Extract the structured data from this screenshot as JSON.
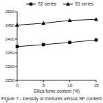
{
  "chart_data": {
    "type": "line",
    "title": "Figure 7 - Density of mixtures versus SF content",
    "x_label": "Silica fume content (%)",
    "x": [
      0,
      5,
      10,
      15
    ],
    "series": [
      {
        "name": "S2 series",
        "color": "#000000",
        "marker": "square",
        "values": [
          2373,
          2380,
          2388,
          2397
        ]
      },
      {
        "name": "S1 series",
        "color": "#000000",
        "marker": "triangle",
        "values": [
          2451,
          2458,
          2468,
          2472
        ]
      }
    ],
    "xlim": [
      0,
      15
    ],
    "xticks": [
      0,
      5,
      10,
      15
    ],
    "ylim": [
      2250,
      2500
    ],
    "yticks": [
      2250,
      2300,
      2350,
      2400,
      2450,
      2500
    ],
    "grid": false,
    "legend": "top"
  }
}
